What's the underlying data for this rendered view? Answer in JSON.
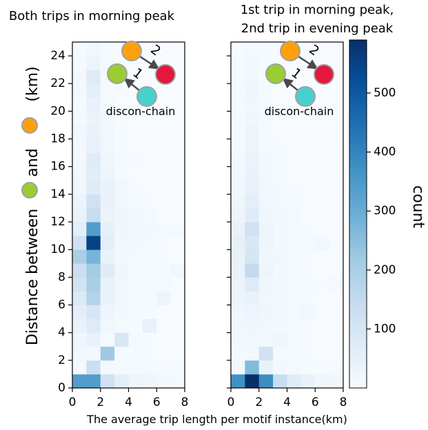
{
  "colormap": {
    "name": "Blues",
    "stops": [
      "#f7fbff",
      "#deebf7",
      "#c6dbef",
      "#9ecae1",
      "#6baed6",
      "#4292c6",
      "#2171b5",
      "#08519c",
      "#08306b"
    ],
    "vmin": 0,
    "vmax": 590
  },
  "colorbar": {
    "label": "count",
    "ticks": [
      "100",
      "200",
      "300",
      "400",
      "500"
    ],
    "tick_values": [
      100,
      200,
      300,
      400,
      500
    ]
  },
  "y_axis_label": {
    "part1": "Distance between",
    "part2": "and",
    "part3": "(km)"
  },
  "x_axis_label": "The average trip length per motif instance(km)",
  "x_tick_labels": [
    "0",
    "2",
    "4",
    "6",
    "8"
  ],
  "y_tick_labels": [
    "0",
    "2",
    "4",
    "6",
    "8",
    "10",
    "12",
    "14",
    "16",
    "18",
    "20",
    "22",
    "24"
  ],
  "node_colors": {
    "orange": "#ff9f0f",
    "green": "#9acd32",
    "red": "#e4173f",
    "cyan": "#48d1cc"
  },
  "chart_data": [
    {
      "type": "heatmap",
      "title": "Both trips in morning peak",
      "xlabel": "The average trip length per motif instance(km)",
      "ylabel": "Distance between and (km)",
      "xlim": [
        0,
        8
      ],
      "ylim": [
        0,
        25
      ],
      "x_bin_edges": [
        0,
        1,
        2,
        3,
        4,
        5,
        6,
        7,
        8
      ],
      "y_bin_edges": [
        0,
        1,
        2,
        3,
        4,
        5,
        6,
        7,
        8,
        9,
        10,
        11,
        12,
        13,
        14,
        15,
        16,
        17,
        18,
        19,
        20,
        21,
        22,
        23,
        24,
        25
      ],
      "annotation": "discon-chain",
      "motif_edge_labels": [
        "1",
        "2"
      ],
      "counts": [
        [
          340,
          340,
          120,
          60,
          30,
          25,
          15,
          10
        ],
        [
          15,
          130,
          15,
          10,
          10,
          10,
          5,
          5
        ],
        [
          20,
          15,
          220,
          10,
          5,
          5,
          0,
          0
        ],
        [
          25,
          40,
          10,
          90,
          10,
          5,
          0,
          0
        ],
        [
          40,
          75,
          20,
          10,
          5,
          45,
          0,
          0
        ],
        [
          60,
          95,
          30,
          15,
          5,
          5,
          0,
          0
        ],
        [
          80,
          180,
          40,
          20,
          10,
          5,
          30,
          0
        ],
        [
          110,
          200,
          40,
          20,
          10,
          5,
          10,
          0
        ],
        [
          130,
          210,
          70,
          25,
          10,
          5,
          5,
          20
        ],
        [
          200,
          280,
          40,
          15,
          10,
          5,
          5,
          0
        ],
        [
          120,
          550,
          60,
          20,
          20,
          10,
          5,
          0
        ],
        [
          60,
          340,
          50,
          25,
          15,
          15,
          10,
          10
        ],
        [
          40,
          140,
          35,
          25,
          15,
          10,
          0,
          0
        ],
        [
          35,
          120,
          40,
          20,
          10,
          5,
          0,
          0
        ],
        [
          25,
          70,
          40,
          20,
          5,
          0,
          0,
          0
        ],
        [
          20,
          65,
          30,
          10,
          0,
          0,
          0,
          0
        ],
        [
          15,
          70,
          25,
          10,
          5,
          0,
          0,
          0
        ],
        [
          15,
          45,
          20,
          5,
          0,
          0,
          0,
          0
        ],
        [
          20,
          40,
          20,
          5,
          0,
          0,
          0,
          0
        ],
        [
          10,
          35,
          15,
          5,
          0,
          0,
          0,
          0
        ],
        [
          10,
          40,
          10,
          0,
          0,
          0,
          0,
          0
        ],
        [
          15,
          60,
          10,
          5,
          0,
          0,
          0,
          0
        ],
        [
          15,
          75,
          10,
          0,
          0,
          0,
          0,
          0
        ],
        [
          10,
          30,
          10,
          0,
          0,
          0,
          0,
          0
        ],
        [
          5,
          20,
          10,
          0,
          0,
          0,
          0,
          0
        ]
      ]
    },
    {
      "type": "heatmap",
      "title": "1st trip in morning peak,\n2nd trip in evening peak",
      "xlabel": "The average trip length per motif instance(km)",
      "ylabel": "",
      "xlim": [
        0,
        8
      ],
      "ylim": [
        0,
        25
      ],
      "x_bin_edges": [
        0,
        1,
        2,
        3,
        4,
        5,
        6,
        7,
        8
      ],
      "y_bin_edges": [
        0,
        1,
        2,
        3,
        4,
        5,
        6,
        7,
        8,
        9,
        10,
        11,
        12,
        13,
        14,
        15,
        16,
        17,
        18,
        19,
        20,
        21,
        22,
        23,
        24,
        25
      ],
      "annotation": "discon-chain",
      "motif_edge_labels": [
        "1",
        "2"
      ],
      "counts": [
        [
          370,
          590,
          380,
          140,
          70,
          40,
          25,
          20
        ],
        [
          15,
          260,
          40,
          15,
          10,
          5,
          5,
          5
        ],
        [
          10,
          15,
          120,
          10,
          5,
          5,
          0,
          0
        ],
        [
          15,
          20,
          15,
          25,
          10,
          5,
          0,
          0
        ],
        [
          20,
          25,
          20,
          15,
          5,
          5,
          0,
          0
        ],
        [
          25,
          30,
          25,
          15,
          10,
          20,
          0,
          0
        ],
        [
          30,
          40,
          20,
          15,
          10,
          5,
          0,
          0
        ],
        [
          35,
          75,
          25,
          15,
          10,
          5,
          5,
          10
        ],
        [
          40,
          150,
          30,
          15,
          10,
          5,
          0,
          0
        ],
        [
          45,
          100,
          25,
          20,
          10,
          5,
          0,
          0
        ],
        [
          50,
          90,
          30,
          15,
          10,
          10,
          20,
          0
        ],
        [
          40,
          120,
          30,
          15,
          10,
          5,
          0,
          0
        ],
        [
          30,
          70,
          25,
          15,
          10,
          0,
          0,
          0
        ],
        [
          25,
          60,
          20,
          10,
          5,
          0,
          0,
          0
        ],
        [
          20,
          45,
          20,
          10,
          5,
          0,
          0,
          0
        ],
        [
          15,
          40,
          15,
          5,
          0,
          0,
          0,
          0
        ],
        [
          15,
          35,
          15,
          5,
          0,
          0,
          0,
          0
        ],
        [
          10,
          30,
          10,
          5,
          0,
          0,
          0,
          0
        ],
        [
          10,
          30,
          10,
          0,
          0,
          0,
          0,
          0
        ],
        [
          5,
          25,
          10,
          0,
          0,
          0,
          0,
          0
        ],
        [
          5,
          20,
          5,
          0,
          0,
          0,
          0,
          0
        ],
        [
          5,
          25,
          5,
          0,
          0,
          0,
          0,
          0
        ],
        [
          5,
          20,
          5,
          0,
          0,
          0,
          0,
          0
        ],
        [
          5,
          15,
          5,
          0,
          0,
          0,
          0,
          0
        ],
        [
          0,
          10,
          5,
          0,
          0,
          0,
          0,
          0
        ]
      ]
    }
  ]
}
